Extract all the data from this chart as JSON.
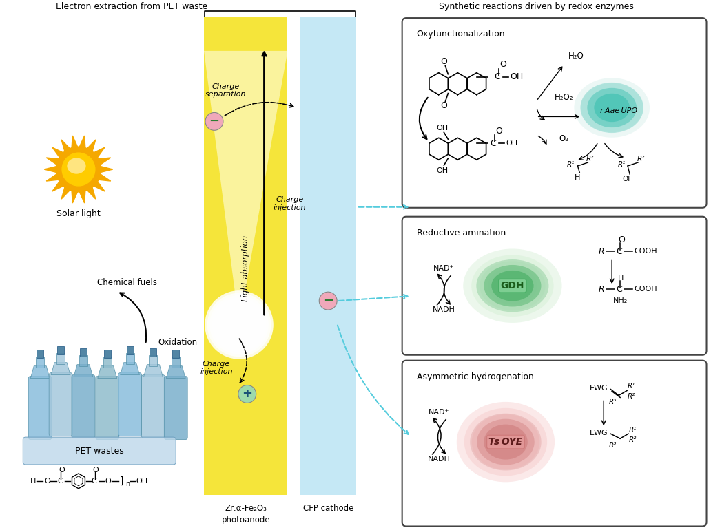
{
  "title_left": "Electron extraction from PET waste",
  "title_right": "Synthetic reactions driven by redox enzymes",
  "solar_light_label": "Solar light",
  "anode_label": "Zr:α-Fe₂O₃\nphotoanode",
  "cathode_label": "CFP cathode",
  "charge_sep_label": "Charge\nseparation",
  "charge_inj_top_label": "Charge\ninjection",
  "charge_inj_bot_label": "Charge\ninjection",
  "light_abs_label": "Light absorption",
  "chemical_fuels_label": "Chemical fuels",
  "oxidation_label": "Oxidation",
  "pet_wastes_label": "PET wastes",
  "box1_title": "Oxyfunctionalization",
  "box2_title": "Reductive amination",
  "box3_title": "Asymmetric hydrogenation",
  "enzyme1_label": "r Aae UPO",
  "enzyme2_label": "GDH",
  "enzyme3_label": "Ts OYE",
  "nad_plus": "NAD⁺",
  "nadh": "NADH",
  "h2o": "H₂O",
  "h2o2": "H₂O₂",
  "o2": "O₂",
  "yellow_color": "#F5E53A",
  "blue_light_color": "#C5E8F5",
  "box_border": "#444444",
  "green_enzyme_color": "#3DAA5C",
  "teal_enzyme_color": "#3ABFB0",
  "red_enzyme_color": "#C97070",
  "neg_circle_color": "#F0A8BA",
  "pos_circle_color": "#9DDAAB",
  "dashed_arrow_color": "#55CCDD",
  "sun_outer_color": "#F5A800",
  "sun_inner_color": "#FFE580",
  "figsize": [
    10.32,
    7.7
  ],
  "dpi": 100
}
